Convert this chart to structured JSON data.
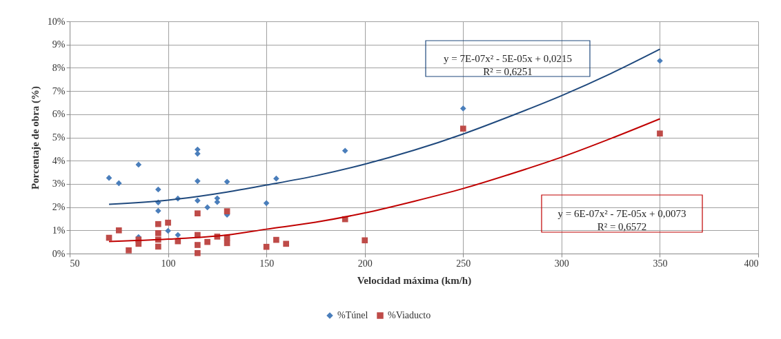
{
  "chart_data": {
    "type": "scatter",
    "xlabel": "Velocidad máxima (km/h)",
    "ylabel": "Porcentaje de obra (%)",
    "xlim": [
      50,
      400
    ],
    "xticks": [
      50,
      100,
      150,
      200,
      250,
      300,
      350,
      400
    ],
    "ylim": [
      0,
      10
    ],
    "yticks": [
      {
        "value": 0,
        "label": "0%"
      },
      {
        "value": 1,
        "label": "1%"
      },
      {
        "value": 2,
        "label": "2%"
      },
      {
        "value": 3,
        "label": "3%"
      },
      {
        "value": 4,
        "label": "4%"
      },
      {
        "value": 5,
        "label": "5%"
      },
      {
        "value": 6,
        "label": "6%"
      },
      {
        "value": 7,
        "label": "7%"
      },
      {
        "value": 8,
        "label": "8%"
      },
      {
        "value": 9,
        "label": "9%"
      },
      {
        "value": 10,
        "label": "10%"
      }
    ],
    "grid": true,
    "legend": "bottom",
    "series": [
      {
        "name": "%Túnel",
        "marker": "diamond",
        "color": "#4a7ebb",
        "x": [
          70,
          75,
          85,
          85,
          95,
          95,
          95,
          100,
          105,
          105,
          115,
          115,
          115,
          115,
          120,
          125,
          125,
          130,
          130,
          150,
          155,
          190,
          250,
          350
        ],
        "values": [
          3.26,
          3.03,
          3.83,
          0.71,
          2.76,
          2.2,
          1.84,
          0.98,
          2.37,
          0.8,
          4.48,
          4.3,
          3.12,
          2.28,
          1.99,
          2.38,
          2.22,
          3.09,
          1.67,
          2.17,
          3.23,
          4.43,
          6.25,
          8.3
        ]
      },
      {
        "name": "%Viaducto",
        "marker": "square",
        "color": "#be4b48",
        "x": [
          70,
          75,
          80,
          85,
          85,
          95,
          95,
          95,
          95,
          100,
          105,
          115,
          115,
          115,
          115,
          120,
          125,
          130,
          130,
          130,
          150,
          155,
          160,
          190,
          200,
          250,
          350
        ],
        "values": [
          0.68,
          1.0,
          0.14,
          0.6,
          0.42,
          1.27,
          0.88,
          0.6,
          0.3,
          1.33,
          0.53,
          1.73,
          0.8,
          0.37,
          0.02,
          0.5,
          0.73,
          1.82,
          0.68,
          0.45,
          0.29,
          0.59,
          0.42,
          1.48,
          0.57,
          5.38,
          5.17
        ]
      },
      {
        "type": "line",
        "color": "#1f497d",
        "x": [
          70,
          100,
          130,
          150,
          175,
          200,
          225,
          250,
          275,
          300,
          325,
          350
        ],
        "values": [
          2.12,
          2.3,
          2.65,
          2.95,
          3.35,
          3.85,
          4.45,
          5.15,
          5.95,
          6.8,
          7.75,
          8.8
        ]
      },
      {
        "type": "line",
        "color": "#c00000",
        "x": [
          70,
          100,
          130,
          150,
          175,
          200,
          225,
          250,
          275,
          300,
          325,
          350
        ],
        "values": [
          0.52,
          0.62,
          0.8,
          1.05,
          1.35,
          1.75,
          2.25,
          2.8,
          3.45,
          4.15,
          4.95,
          5.8
        ]
      }
    ],
    "annotations": [
      "y = 7E-07x² - 5E-05x + 0,0215\nR² = 0,6251",
      "y = 6E-07x² - 7E-05x + 0,0073\nR² = 0,6572"
    ]
  }
}
